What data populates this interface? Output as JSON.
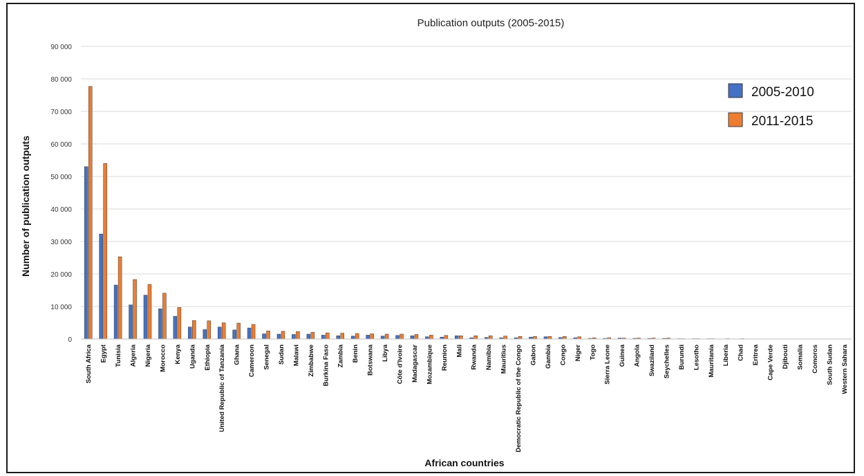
{
  "chart_data": {
    "type": "bar",
    "title": "Publication outputs (2005-2015)",
    "xlabel": "African countries",
    "ylabel": "Number of publication outputs",
    "ylim": [
      0,
      90000
    ],
    "yticks": [
      0,
      10000,
      20000,
      30000,
      40000,
      50000,
      60000,
      70000,
      80000,
      90000
    ],
    "ytick_labels": [
      "0",
      "10 000",
      "20 000",
      "30 000",
      "40 000",
      "50 000",
      "60 000",
      "70 000",
      "80 000",
      "90 000"
    ],
    "grid": true,
    "legend_position": "top-right",
    "categories": [
      "South Africa",
      "Egypt",
      "Tunisia",
      "Algeria",
      "Nigeria",
      "Morocco",
      "Kenya",
      "Uganda",
      "Ethiopia",
      "United Republic of Tanzania",
      "Ghana",
      "Cameroon",
      "Senegal",
      "Sudan",
      "Malawi",
      "Zimbabwe",
      "Burkina Faso",
      "Zambia",
      "Benin",
      "Botswana",
      "Libya",
      "Côte d'Ivoire",
      "Madagascar",
      "Mozambique",
      "Reunion",
      "Mali",
      "Rwanda",
      "Namibia",
      "Mauritius",
      "Democratic Republic of the Congo",
      "Gabon",
      "Gambia",
      "Congo",
      "Niger",
      "Togo",
      "Sierra Leone",
      "Guinea",
      "Angola",
      "Swaziland",
      "Seychelles",
      "Burundi",
      "Lesotho",
      "Mauritania",
      "Liberia",
      "Chad",
      "Eritrea",
      "Cape Verde",
      "Djibouti",
      "Somalia",
      "Comoros",
      "South Sudan",
      "Western Sahara"
    ],
    "series": [
      {
        "name": "2005-2010",
        "color": "#4472c4",
        "values": [
          53000,
          32300,
          16600,
          10500,
          13500,
          9300,
          7000,
          3700,
          2900,
          3700,
          2800,
          3400,
          1600,
          1500,
          1400,
          1500,
          1200,
          1000,
          900,
          1200,
          900,
          1100,
          1000,
          700,
          600,
          1000,
          400,
          500,
          400,
          400,
          600,
          700,
          500,
          400,
          200,
          200,
          300,
          200,
          200,
          200,
          100,
          100,
          100,
          0,
          0,
          0,
          0,
          0,
          0,
          0,
          0,
          0
        ]
      },
      {
        "name": "2011-2015",
        "color": "#ed7d31",
        "values": [
          77700,
          54000,
          25300,
          18300,
          16800,
          14100,
          9700,
          5700,
          5600,
          5000,
          4900,
          4500,
          2500,
          2400,
          2300,
          2100,
          1900,
          1800,
          1700,
          1600,
          1500,
          1500,
          1400,
          1200,
          1100,
          1000,
          1000,
          1000,
          900,
          800,
          800,
          800,
          800,
          700,
          400,
          400,
          300,
          300,
          300,
          300,
          100,
          100,
          100,
          100,
          100,
          0,
          0,
          0,
          0,
          0,
          0,
          0
        ]
      }
    ]
  }
}
